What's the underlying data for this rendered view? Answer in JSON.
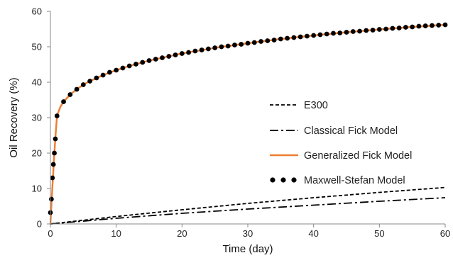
{
  "chart_data": {
    "type": "line",
    "title": "",
    "xlabel": "Time (day)",
    "ylabel": "Oil Recovery (%)",
    "xlim": [
      0,
      60
    ],
    "ylim": [
      0,
      60
    ],
    "xticks": [
      0,
      10,
      20,
      30,
      40,
      50,
      60
    ],
    "yticks": [
      0,
      10,
      20,
      30,
      40,
      50,
      60
    ],
    "grid": false,
    "legend_position": "right",
    "series": [
      {
        "name": "E300",
        "style": "dashed",
        "color": "#000000",
        "x": [
          0,
          10,
          20,
          30,
          40,
          50,
          60
        ],
        "y": [
          0,
          2.1,
          4.0,
          5.8,
          7.4,
          8.9,
          10.3
        ]
      },
      {
        "name": "Classical Fick Model",
        "style": "dash-dot",
        "color": "#000000",
        "x": [
          0,
          10,
          20,
          30,
          40,
          50,
          60
        ],
        "y": [
          0,
          1.6,
          3.0,
          4.2,
          5.3,
          6.4,
          7.4
        ]
      },
      {
        "name": "Generalized Fick Model",
        "style": "solid",
        "color": "#ED7D31",
        "x": [
          0,
          0.1,
          0.2,
          0.3,
          0.4,
          0.5,
          0.6,
          0.8,
          1.0,
          1.5,
          2,
          3,
          4,
          5,
          6,
          8,
          10,
          12,
          15,
          20,
          25,
          30,
          35,
          40,
          45,
          50,
          55,
          60
        ],
        "y": [
          0,
          3.5,
          7,
          10.5,
          13.5,
          17,
          20,
          25.5,
          30.5,
          33,
          34.5,
          36.5,
          38,
          39.3,
          40.3,
          42,
          43.4,
          44.6,
          46.1,
          48.1,
          49.7,
          51.0,
          52.2,
          53.2,
          54.1,
          54.9,
          55.6,
          56.2
        ]
      },
      {
        "name": "Maxwell-Stefan Model",
        "style": "markers",
        "color": "#000000",
        "x": [
          0,
          0.15,
          0.3,
          0.45,
          0.6,
          0.75,
          1,
          2,
          3,
          4,
          5,
          6,
          7,
          8,
          9,
          10,
          11,
          12,
          13,
          14,
          15,
          16,
          17,
          18,
          19,
          20,
          21,
          22,
          23,
          24,
          25,
          26,
          27,
          28,
          29,
          30,
          31,
          32,
          33,
          34,
          35,
          36,
          37,
          38,
          39,
          40,
          41,
          42,
          43,
          44,
          45,
          46,
          47,
          48,
          49,
          50,
          51,
          52,
          53,
          54,
          55,
          56,
          57,
          58,
          59,
          60
        ],
        "y": [
          3.2,
          7,
          13,
          16.8,
          20,
          24,
          30.5,
          34.5,
          36.5,
          38,
          39.3,
          40.3,
          41.2,
          42,
          42.8,
          43.4,
          44.0,
          44.6,
          45.1,
          45.6,
          46.1,
          46.5,
          46.9,
          47.3,
          47.7,
          48.1,
          48.4,
          48.8,
          49.1,
          49.4,
          49.7,
          50.0,
          50.2,
          50.5,
          50.7,
          51.0,
          51.2,
          51.5,
          51.7,
          51.9,
          52.2,
          52.4,
          52.6,
          52.8,
          53.0,
          53.2,
          53.4,
          53.6,
          53.8,
          53.9,
          54.1,
          54.3,
          54.4,
          54.6,
          54.7,
          54.9,
          55.0,
          55.2,
          55.3,
          55.5,
          55.6,
          55.8,
          55.9,
          56.0,
          56.1,
          56.2
        ]
      }
    ]
  }
}
